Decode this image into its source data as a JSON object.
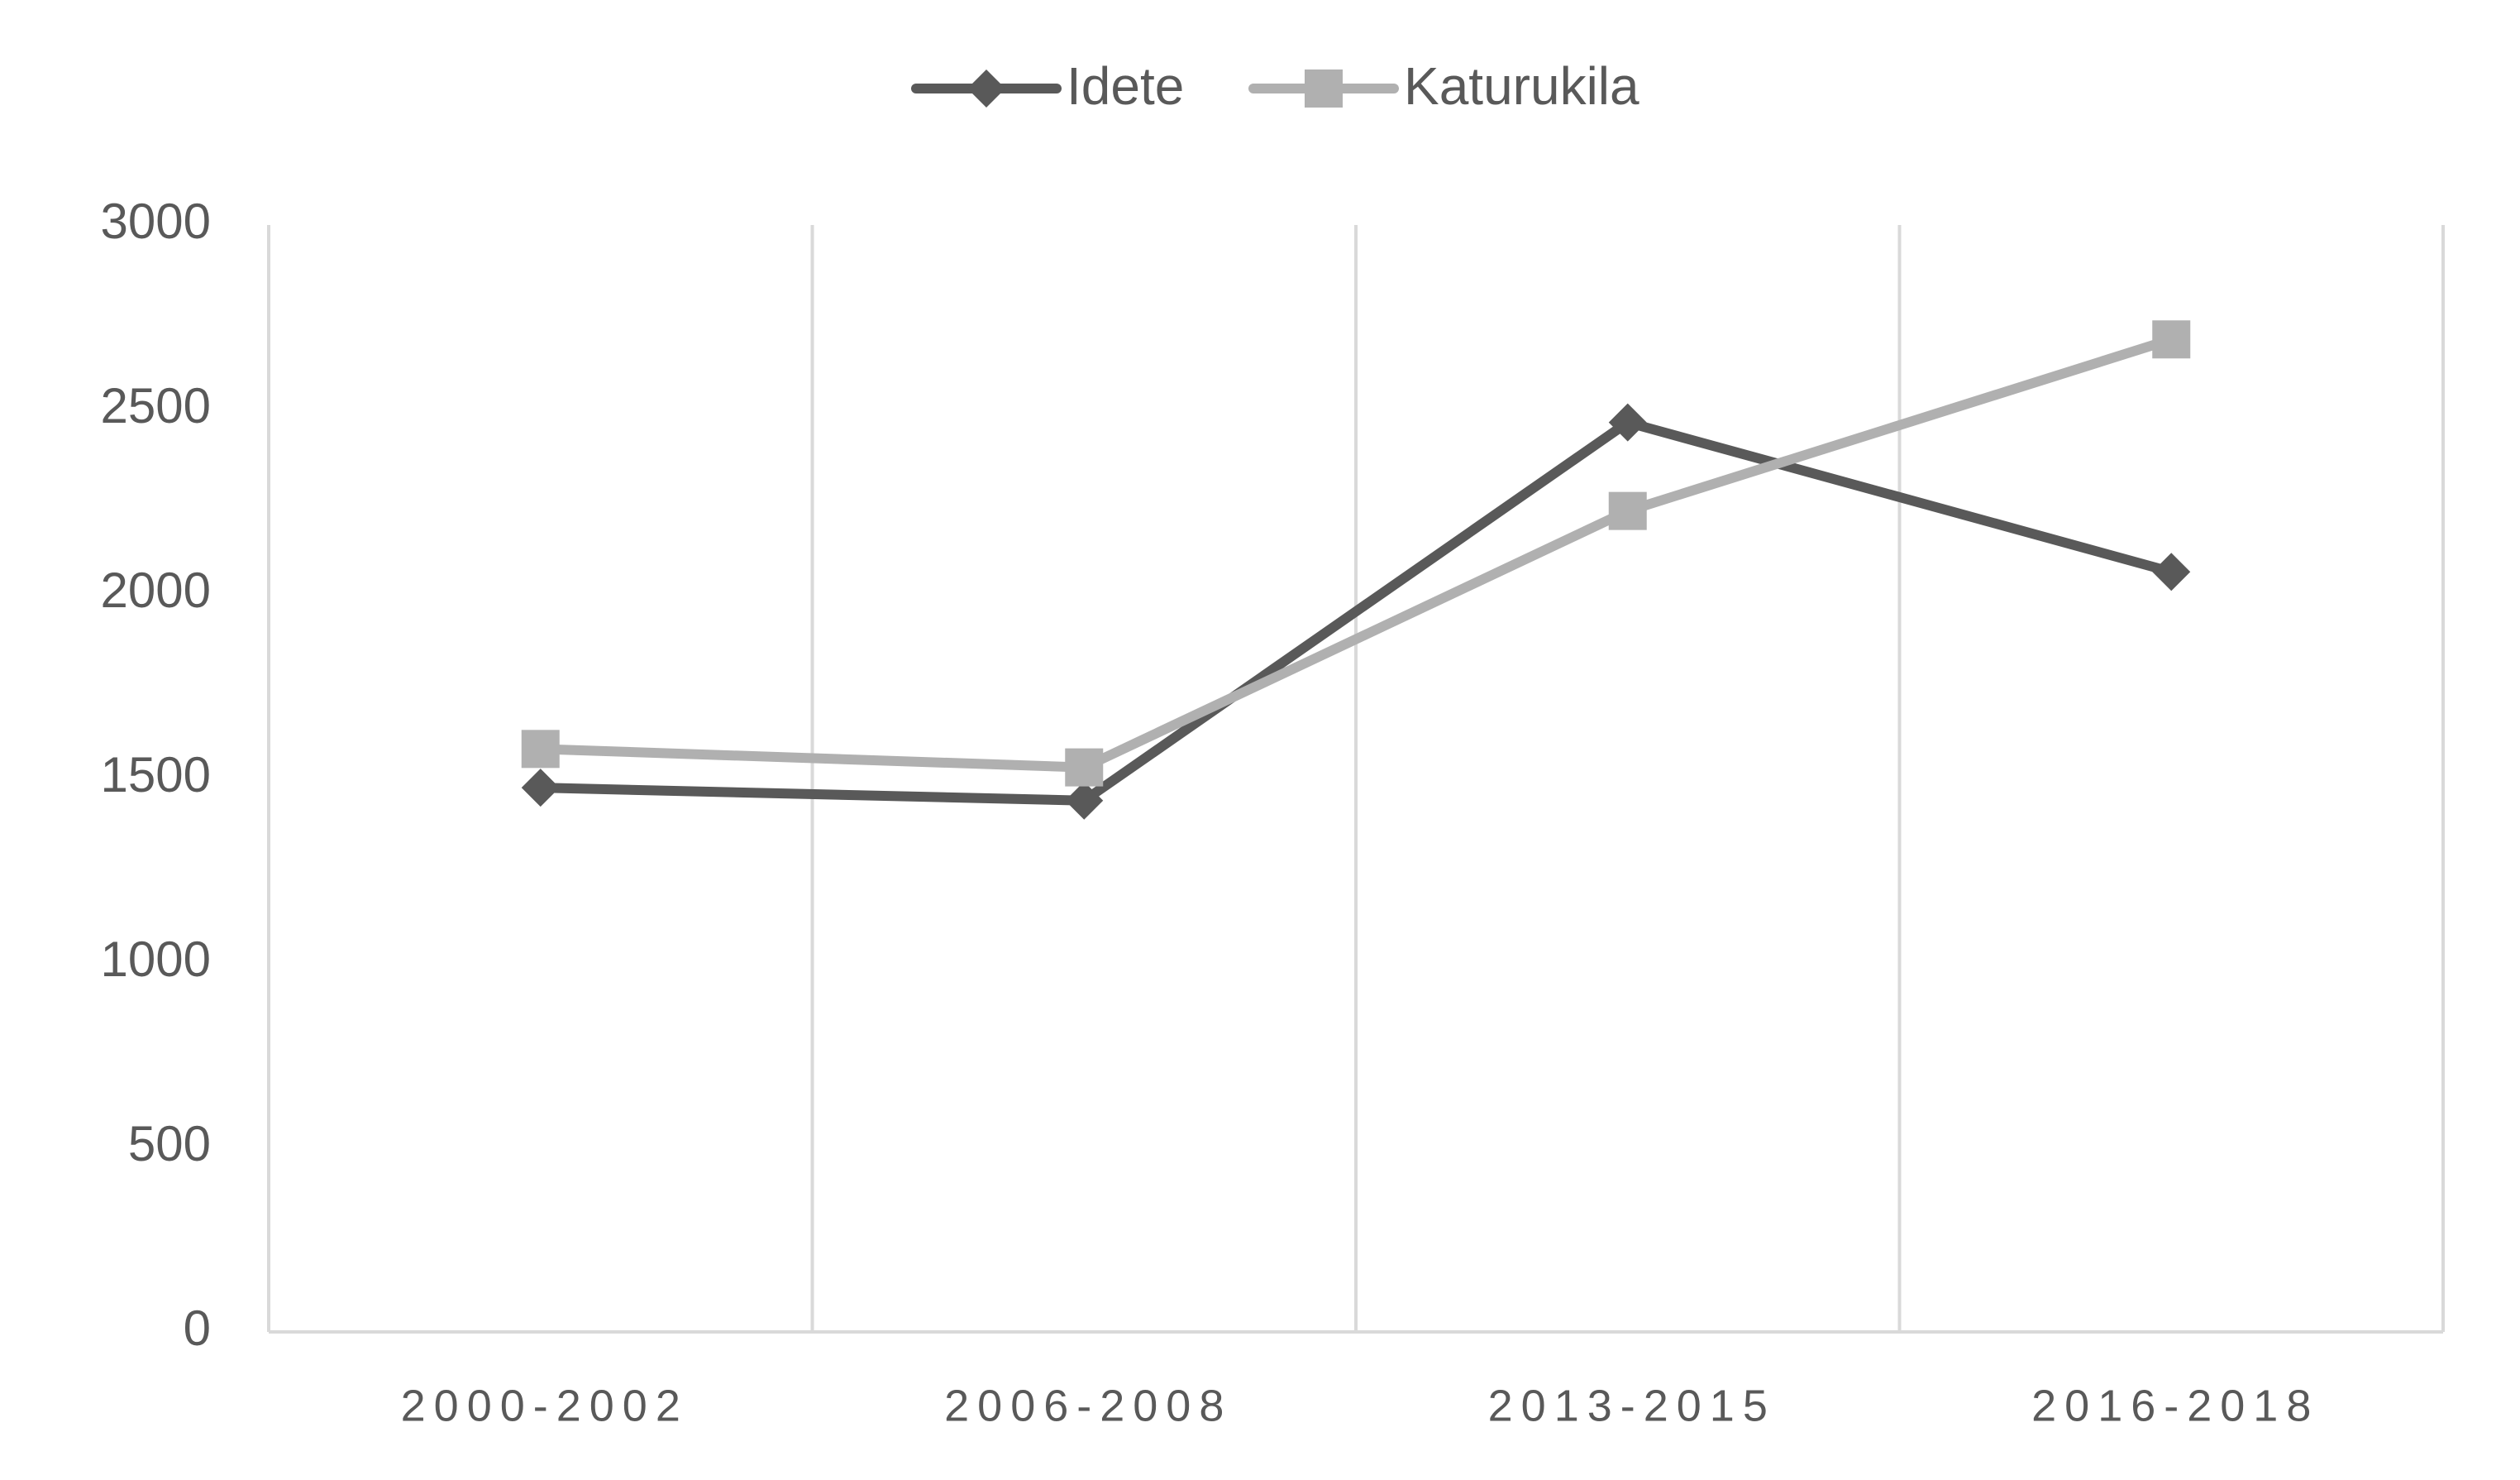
{
  "chart_data": {
    "type": "line",
    "categories": [
      "2000-2002",
      "2006-2008",
      "2013-2015",
      "2016-2018"
    ],
    "series": [
      {
        "name": "Idete",
        "color": "#595959",
        "marker": "diamond",
        "values": [
          1475,
          1440,
          2465,
          2060
        ]
      },
      {
        "name": "Katurukila",
        "color": "#b0b0b0",
        "marker": "square",
        "values": [
          1580,
          1530,
          2225,
          2690
        ]
      }
    ],
    "ylim": [
      0,
      3000
    ],
    "yticks": [
      0,
      500,
      1000,
      1500,
      2000,
      2500,
      3000
    ],
    "legend": "top"
  }
}
